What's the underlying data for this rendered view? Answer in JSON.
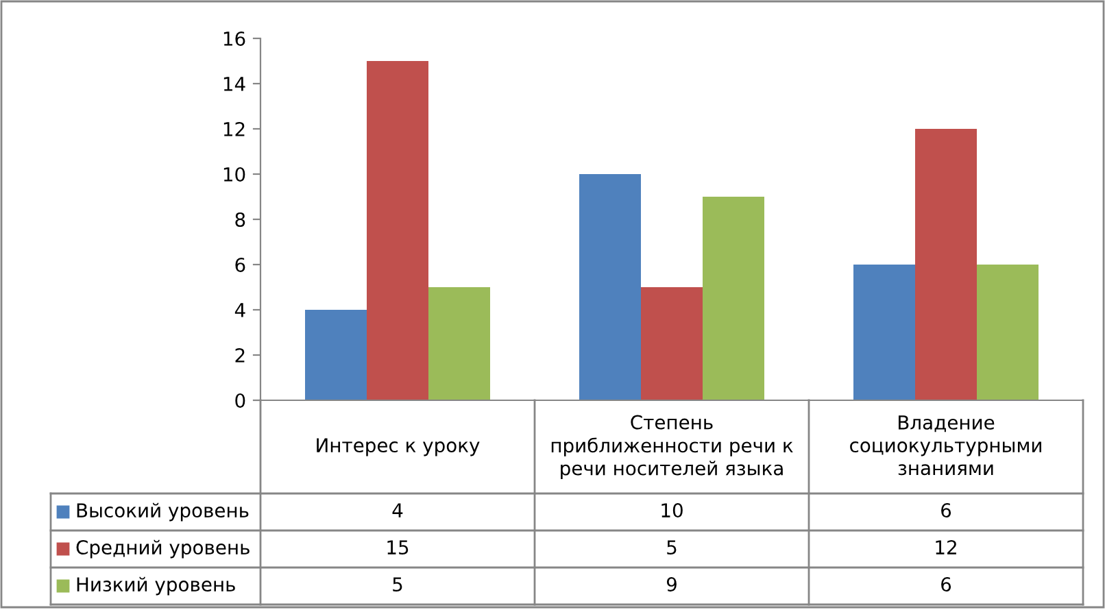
{
  "chart_data": {
    "type": "bar",
    "categories": [
      "Интерес к уроку",
      "Степень приближенности речи к речи носителей языка",
      "Владение социокультурными знаниями"
    ],
    "series": [
      {
        "name": "Высокий уровень",
        "color": "#4f81bd",
        "values": [
          4,
          10,
          6
        ]
      },
      {
        "name": "Средний уровень",
        "color": "#c0504d",
        "values": [
          15,
          5,
          12
        ]
      },
      {
        "name": "Низкий уровень",
        "color": "#9bbb59",
        "values": [
          5,
          9,
          6
        ]
      }
    ],
    "ylim": [
      0,
      16
    ],
    "yticks": [
      0,
      2,
      4,
      6,
      8,
      10,
      12,
      14,
      16
    ],
    "data_labels": true,
    "legend": "bottom",
    "grid": false
  }
}
